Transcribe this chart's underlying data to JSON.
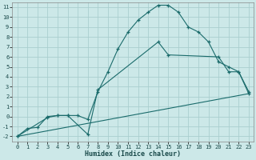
{
  "title": "",
  "xlabel": "Humidex (Indice chaleur)",
  "ylabel": "",
  "bg_color": "#cce8e8",
  "grid_color": "#aacfcf",
  "line_color": "#1a6b6b",
  "xlim": [
    -0.5,
    23.5
  ],
  "ylim": [
    -2.5,
    11.5
  ],
  "xticks": [
    0,
    1,
    2,
    3,
    4,
    5,
    6,
    7,
    8,
    9,
    10,
    11,
    12,
    13,
    14,
    15,
    16,
    17,
    18,
    19,
    20,
    21,
    22,
    23
  ],
  "yticks": [
    -2,
    -1,
    0,
    1,
    2,
    3,
    4,
    5,
    6,
    7,
    8,
    9,
    10,
    11
  ],
  "line1_x": [
    0,
    1,
    2,
    3,
    4,
    5,
    6,
    7,
    8,
    9,
    10,
    11,
    12,
    13,
    14,
    15,
    16,
    17,
    18,
    19,
    20,
    21,
    22,
    23
  ],
  "line1_y": [
    -2,
    -1.2,
    -1.1,
    0.0,
    0.1,
    0.1,
    0.1,
    -0.3,
    2.5,
    4.5,
    6.8,
    8.5,
    9.7,
    10.5,
    11.2,
    11.2,
    10.5,
    9.0,
    8.5,
    7.5,
    5.5,
    5.0,
    4.5,
    2.5
  ],
  "line2_x": [
    0,
    3,
    4,
    5,
    7,
    8,
    14,
    15,
    20,
    21,
    22,
    23
  ],
  "line2_y": [
    -2,
    -0.1,
    0.1,
    0.1,
    -1.8,
    2.7,
    7.5,
    6.2,
    6.0,
    4.5,
    4.5,
    2.3
  ],
  "line3_x": [
    0,
    23
  ],
  "line3_y": [
    -2,
    2.3
  ],
  "xlabel_fontsize": 6,
  "tick_fontsize": 5
}
